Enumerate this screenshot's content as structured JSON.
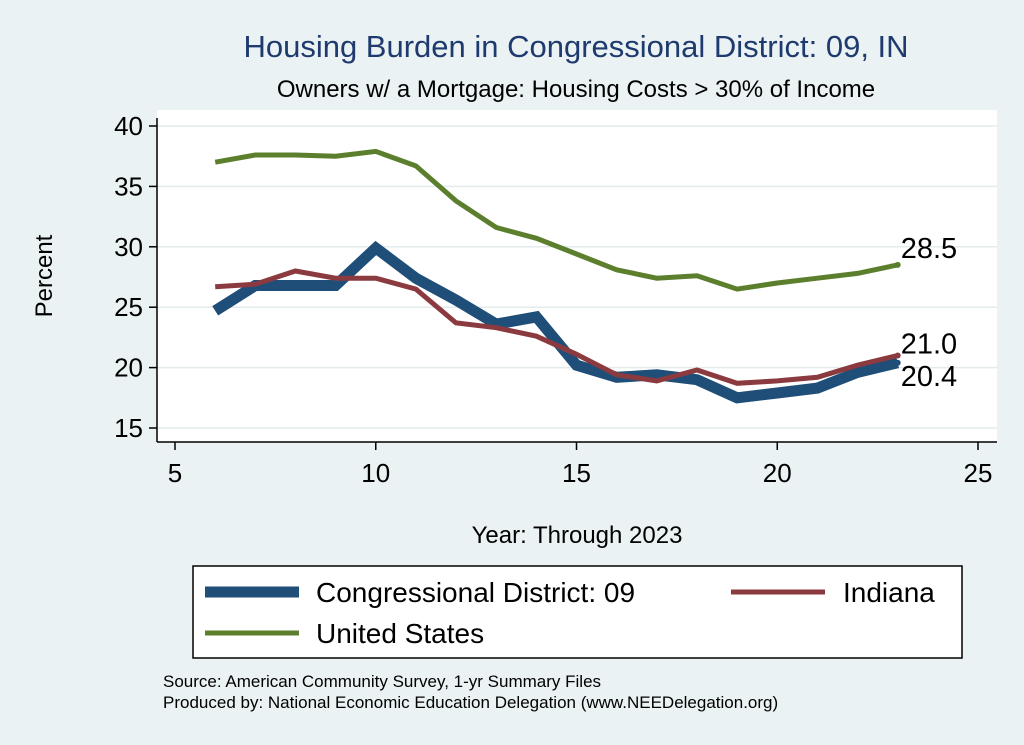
{
  "chart_data": {
    "type": "line",
    "title": "Housing Burden in Congressional District:  09, IN",
    "subtitle": "Owners w/ a Mortgage: Housing Costs > 30% of Income",
    "xlabel": "Year: Through 2023",
    "ylabel": "Percent",
    "xlim": [
      5,
      25
    ],
    "ylim": [
      15,
      40
    ],
    "xticks": [
      "5",
      "10",
      "15",
      "20",
      "25"
    ],
    "yticks": [
      "15",
      "20",
      "25",
      "30",
      "35",
      "40"
    ],
    "grid": true,
    "legend_position": "bottom",
    "series": [
      {
        "name": "Congressional District:  09",
        "color": "#1f4e79",
        "x": [
          6,
          7,
          8,
          9,
          10,
          11,
          12,
          13,
          14,
          15,
          16,
          17,
          18,
          19,
          20,
          21,
          22,
          23
        ],
        "values": [
          24.7,
          26.8,
          26.8,
          26.8,
          29.9,
          27.4,
          25.6,
          23.6,
          24.2,
          20.2,
          19.2,
          19.4,
          19.0,
          17.5,
          17.9,
          18.3,
          19.6,
          20.4
        ],
        "end_label": "20.4"
      },
      {
        "name": "Indiana",
        "color": "#8b3a3f",
        "x": [
          6,
          7,
          8,
          9,
          10,
          11,
          12,
          13,
          14,
          15,
          16,
          17,
          18,
          19,
          20,
          21,
          22,
          23
        ],
        "values": [
          26.7,
          26.9,
          28.0,
          27.4,
          27.4,
          26.5,
          23.7,
          23.3,
          22.6,
          21.1,
          19.4,
          18.9,
          19.8,
          18.7,
          18.9,
          19.2,
          20.2,
          21.0
        ],
        "end_label": "21.0"
      },
      {
        "name": "United States",
        "color": "#5c7f2e",
        "x": [
          6,
          7,
          8,
          9,
          10,
          11,
          12,
          13,
          14,
          15,
          16,
          17,
          18,
          19,
          20,
          21,
          22,
          23
        ],
        "values": [
          37.0,
          37.6,
          37.6,
          37.5,
          37.9,
          36.7,
          33.8,
          31.6,
          30.7,
          29.4,
          28.1,
          27.4,
          27.6,
          26.5,
          27.0,
          27.4,
          27.8,
          28.5
        ],
        "end_label": "28.5"
      }
    ],
    "notes": [
      "Source: American Community Survey, 1-yr Summary Files",
      "Produced by: National Economic Education Delegation (www.NEEDelegation.org)"
    ]
  }
}
